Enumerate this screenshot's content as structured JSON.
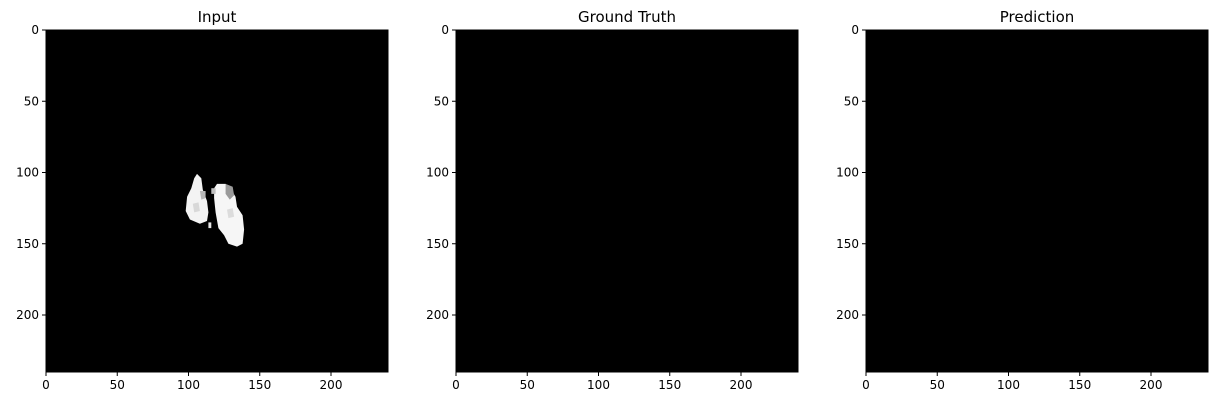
{
  "chart_data": [
    {
      "type": "heatmap",
      "title": "Input",
      "colormap": "gray",
      "background_color": "#000000",
      "xlim": [
        0,
        240
      ],
      "ylim": [
        240,
        0
      ],
      "xticks": [
        0,
        50,
        100,
        150,
        200
      ],
      "yticks": [
        0,
        50,
        100,
        150,
        200
      ],
      "content": "bright-blobs",
      "blobs": [
        {
          "points": [
            [
              106,
              101
            ],
            [
              109,
              104
            ],
            [
              110,
              112
            ],
            [
              113,
              120
            ],
            [
              114,
              128
            ],
            [
              113,
              134
            ],
            [
              108,
              136
            ],
            [
              101,
              133
            ],
            [
              98,
              127
            ],
            [
              99,
              117
            ],
            [
              102,
              111
            ],
            [
              104,
              104
            ]
          ],
          "color": "#f3f3f3"
        },
        {
          "points": [
            [
              120,
              108
            ],
            [
              126,
              108
            ],
            [
              130,
              112
            ],
            [
              133,
              117
            ],
            [
              134,
              124
            ],
            [
              138,
              130
            ],
            [
              139,
              140
            ],
            [
              138,
              150
            ],
            [
              134,
              152
            ],
            [
              128,
              150
            ],
            [
              125,
              144
            ],
            [
              121,
              139
            ],
            [
              119,
              128
            ],
            [
              118,
              118
            ],
            [
              118,
              111
            ]
          ],
          "color": "#f6f6f6"
        },
        {
          "points": [
            [
              126,
              108
            ],
            [
              131,
              110
            ],
            [
              132,
              116
            ],
            [
              129,
              119
            ],
            [
              126,
              115
            ]
          ],
          "color": "#9a9a9a"
        },
        {
          "points": [
            [
              108,
              113
            ],
            [
              112,
              113
            ],
            [
              112,
              118
            ],
            [
              109,
              119
            ]
          ],
          "color": "#b8b8b8"
        },
        {
          "points": [
            [
              116,
              111
            ],
            [
              119,
              111
            ],
            [
              119,
              115
            ],
            [
              116,
              115
            ]
          ],
          "color": "#bfbfbf"
        },
        {
          "points": [
            [
              103,
              122
            ],
            [
              107,
              121
            ],
            [
              108,
              127
            ],
            [
              104,
              128
            ]
          ],
          "color": "#d8d8d8"
        },
        {
          "points": [
            [
              127,
              126
            ],
            [
              131,
              125
            ],
            [
              132,
              131
            ],
            [
              128,
              132
            ]
          ],
          "color": "#dcdcdc"
        },
        {
          "points": [
            [
              114,
              135
            ],
            [
              116,
              135
            ],
            [
              116,
              139
            ],
            [
              114,
              139
            ]
          ],
          "color": "#e6e6e6"
        }
      ]
    },
    {
      "type": "heatmap",
      "title": "Ground Truth",
      "colormap": "gray",
      "background_color": "#000000",
      "xlim": [
        0,
        240
      ],
      "ylim": [
        240,
        0
      ],
      "xticks": [
        0,
        50,
        100,
        150,
        200
      ],
      "yticks": [
        0,
        50,
        100,
        150,
        200
      ],
      "content": "all-zero",
      "blobs": []
    },
    {
      "type": "heatmap",
      "title": "Prediction",
      "colormap": "gray",
      "background_color": "#000000",
      "xlim": [
        0,
        240
      ],
      "ylim": [
        240,
        0
      ],
      "xticks": [
        0,
        50,
        100,
        150,
        200
      ],
      "yticks": [
        0,
        50,
        100,
        150,
        200
      ],
      "content": "all-zero",
      "blobs": []
    }
  ]
}
